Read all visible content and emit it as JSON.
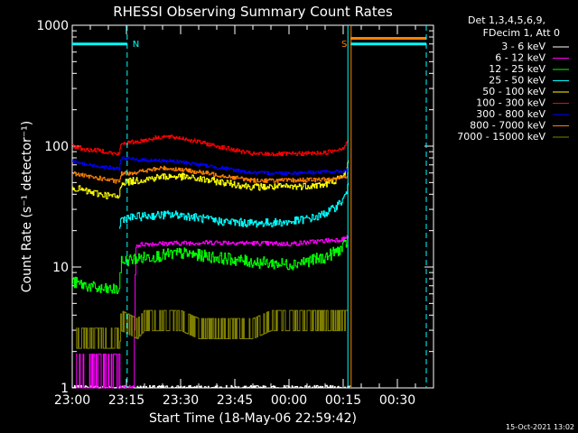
{
  "chart_data": {
    "type": "line",
    "title": "RHESSI Observing Summary Count Rates",
    "xlabel": "Start Time (18-May-06 22:59:42)",
    "ylabel": "Count Rate (s⁻¹ detector⁻¹)",
    "y_scale": "log",
    "ylim": [
      1,
      1000
    ],
    "xlim_min": [
      0,
      100
    ],
    "x_ticks": [
      {
        "t": 0,
        "label": "23:00"
      },
      {
        "t": 15,
        "label": "23:15"
      },
      {
        "t": 30,
        "label": "23:30"
      },
      {
        "t": 45,
        "label": "23:45"
      },
      {
        "t": 60,
        "label": "00:00"
      },
      {
        "t": 75,
        "label": "00:15"
      },
      {
        "t": 90,
        "label": "00:30"
      }
    ],
    "y_ticks": [
      {
        "v": 1,
        "label": "1"
      },
      {
        "v": 10,
        "label": "10"
      },
      {
        "v": 100,
        "label": "100"
      },
      {
        "v": 1000,
        "label": "1000"
      }
    ],
    "legend_header": [
      "Det 1,3,4,5,6,9,",
      "FDecim 1, Att 0"
    ],
    "legend_placement": "top-right, outside plot",
    "series": [
      {
        "name": "3 - 6 keV",
        "color": "#ffffff",
        "t": [
          0,
          18,
          18.5,
          55,
          76,
          77
        ],
        "values": [
          1,
          1,
          1,
          1,
          1,
          1
        ]
      },
      {
        "name": "6 - 12 keV",
        "color": "#ff00ff",
        "t": [
          1,
          3,
          4,
          7,
          8,
          12,
          13,
          14,
          15,
          17,
          17.5,
          20,
          40,
          60,
          75,
          76.5
        ],
        "values": [
          1,
          2,
          1,
          2,
          1,
          1,
          1,
          1,
          1,
          1,
          15,
          15.5,
          16,
          15.5,
          17,
          18
        ]
      },
      {
        "name": "12 - 25 keV",
        "color": "#00ff00",
        "t": [
          0,
          4,
          8,
          12,
          13,
          13.5,
          16,
          20,
          30,
          40,
          50,
          60,
          70,
          75,
          76.5
        ],
        "values": [
          7.5,
          7,
          6.5,
          6.5,
          6.5,
          11,
          11.5,
          12,
          13,
          12,
          11,
          10.5,
          12,
          14.5,
          17
        ]
      },
      {
        "name": "25 - 50 keV",
        "color": "#00ffff",
        "t": [
          13,
          13.5,
          18,
          25,
          30,
          40,
          50,
          60,
          68,
          72,
          75,
          76.5
        ],
        "values": [
          21,
          25,
          26,
          27,
          27,
          24,
          23,
          23.5,
          26,
          30,
          36,
          47
        ]
      },
      {
        "name": "50 - 100 keV",
        "color": "#ffff00",
        "t": [
          0,
          4,
          8,
          12,
          13,
          13.5,
          18,
          25,
          30,
          40,
          50,
          60,
          70,
          75,
          76.5
        ],
        "values": [
          46,
          42,
          40,
          38,
          38,
          50,
          52,
          56,
          56,
          51,
          46,
          46,
          48,
          56,
          75
        ]
      },
      {
        "name": "100 - 300 keV",
        "color": "#ff0000",
        "t": [
          0,
          4,
          8,
          12,
          13,
          13.5,
          18,
          25,
          30,
          40,
          50,
          60,
          70,
          75,
          76.5
        ],
        "values": [
          100,
          93,
          92,
          86,
          86,
          105,
          109,
          120,
          117,
          100,
          86,
          86,
          88,
          97,
          115
        ]
      },
      {
        "name": "300 - 800 keV",
        "color": "#0000ff",
        "t": [
          0,
          4,
          8,
          12,
          13,
          13.5,
          18,
          25,
          30,
          40,
          50,
          60,
          70,
          75,
          76.5
        ],
        "values": [
          75,
          70,
          68,
          65,
          65,
          80,
          77,
          76,
          74,
          67,
          60,
          60,
          61,
          62,
          64
        ]
      },
      {
        "name": "800 - 7000 keV",
        "color": "#ff8000",
        "t": [
          0,
          4,
          8,
          12,
          13,
          13.5,
          18,
          25,
          30,
          40,
          50,
          60,
          70,
          75,
          76.5
        ],
        "values": [
          60,
          56,
          54,
          51,
          51,
          59,
          61,
          66,
          64,
          58,
          52,
          52,
          53,
          55,
          58
        ]
      },
      {
        "name": "7000 - 15000 keV",
        "color": "#808000",
        "t": [
          1,
          5,
          10,
          13,
          13.5,
          18,
          20,
          25,
          30,
          35,
          40,
          45,
          50,
          55,
          60,
          65,
          70,
          75,
          76.5
        ],
        "values": [
          2.5,
          2.5,
          2.5,
          2.5,
          3.5,
          3,
          3.5,
          3.5,
          3.5,
          3,
          3,
          3,
          3,
          3.5,
          3.5,
          3.5,
          3.5,
          3.5,
          3.5
        ]
      }
    ],
    "annotations": [
      {
        "label": "N",
        "t": 15.2,
        "color": "#00ffff",
        "kind": "night start"
      },
      {
        "label": "S",
        "t": 77,
        "color": "#ff8000",
        "kind": "SAA start"
      }
    ],
    "night_bars": [
      {
        "t0": 0,
        "t1": 15.2,
        "level": 700
      },
      {
        "t0": 77,
        "t1": 98,
        "level": 700
      }
    ],
    "saa_bar": {
      "t0": 77,
      "t1": 98,
      "level": 780
    },
    "marker_lines": [
      {
        "t": 15.2,
        "color": "#00ffff",
        "style": "dashed"
      },
      {
        "t": 76.3,
        "color": "#00ffff",
        "style": "solid"
      },
      {
        "t": 77.2,
        "color": "#ff8000",
        "style": "solid"
      },
      {
        "t": 98,
        "color": "#00ffff",
        "style": "dashed"
      }
    ]
  },
  "footer": {
    "timestamp": "15-Oct-2021 13:02"
  }
}
